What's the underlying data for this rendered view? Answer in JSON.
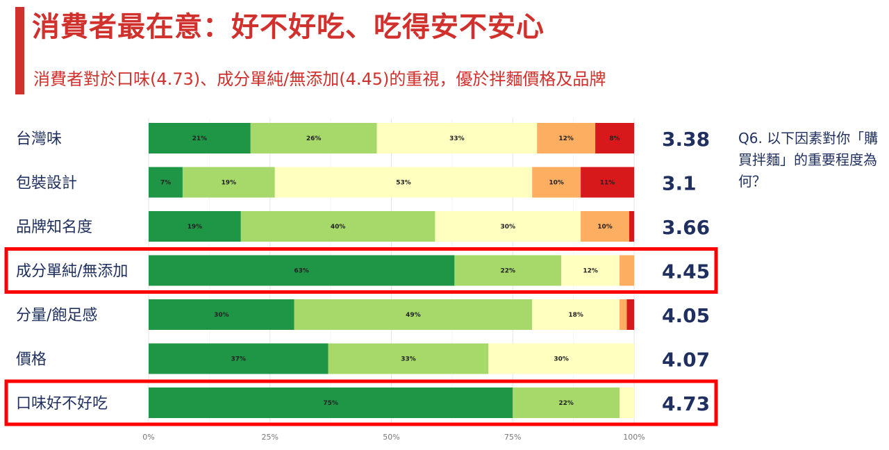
{
  "title": "消費者最在意：好不好吃、吃得安不安心",
  "subtitle": "消費者對於口味(4.73)、成分單純/無添加(4.45)的重視，優於拌麵價格及品牌",
  "question": "Q6. 以下因素對你「購買拌麵」的重要程度為何？",
  "chart_data": {
    "type": "bar",
    "orientation": "horizontal",
    "stacked": true,
    "categories": [
      "台灣味",
      "包裝設計",
      "品牌知名度",
      "成分單純/無添加",
      "分量/飽足感",
      "價格",
      "口味好不好吃"
    ],
    "series": [
      {
        "color": "#1e9646",
        "values": [
          21,
          7,
          19,
          63,
          30,
          37,
          75
        ],
        "labels": [
          "21%",
          "7%",
          "19%",
          "63%",
          "30%",
          "37%",
          "75%"
        ]
      },
      {
        "color": "#a6d96a",
        "values": [
          26,
          19,
          40,
          22,
          49,
          33,
          22
        ],
        "labels": [
          "26%",
          "19%",
          "40%",
          "22%",
          "49%",
          "33%",
          "22%"
        ]
      },
      {
        "color": "#ffffc0",
        "values": [
          33,
          53,
          30,
          12,
          18,
          30,
          3
        ],
        "labels": [
          "33%",
          "53%",
          "30%",
          "12%",
          "18%",
          "30%",
          ""
        ]
      },
      {
        "color": "#fdae61",
        "values": [
          12,
          10,
          10,
          3,
          1.5,
          0,
          0
        ],
        "labels": [
          "12%",
          "10%",
          "10%",
          "",
          "",
          "",
          ""
        ]
      },
      {
        "color": "#d7191c",
        "values": [
          8,
          11,
          1,
          0,
          1.5,
          0,
          0
        ],
        "labels": [
          "8%",
          "11%",
          "",
          "",
          "",
          "",
          ""
        ]
      }
    ],
    "scores": [
      "3.38",
      "3.1",
      "3.66",
      "4.45",
      "4.05",
      "4.07",
      "4.73"
    ],
    "highlighted": [
      "成分單純/無添加",
      "口味好不好吃"
    ],
    "highlight_color": "#ff0000",
    "xticks": [
      "0%",
      "25%",
      "50%",
      "75%",
      "100%"
    ],
    "xlim": [
      0,
      100
    ],
    "grid": true
  }
}
